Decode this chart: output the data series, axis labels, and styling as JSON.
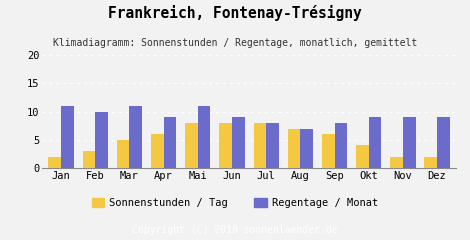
{
  "title": "Frankreich, Fontenay-Trésigny",
  "subtitle": "Klimadiagramm: Sonnenstunden / Regentage, monatlich, gemittelt",
  "months": [
    "Jan",
    "Feb",
    "Mar",
    "Apr",
    "Mai",
    "Jun",
    "Jul",
    "Aug",
    "Sep",
    "Okt",
    "Nov",
    "Dez"
  ],
  "sonnenstunden": [
    2,
    3,
    5,
    6,
    8,
    8,
    8,
    7,
    6,
    4,
    2,
    2
  ],
  "regentage": [
    11,
    10,
    11,
    9,
    11,
    9,
    8,
    7,
    8,
    9,
    9,
    9
  ],
  "color_sonnen": "#f5c842",
  "color_regen": "#6b6bcc",
  "background_chart": "#f2f2f2",
  "background_footer": "#a8a8a8",
  "ylim": [
    0,
    20
  ],
  "yticks": [
    0,
    5,
    10,
    15,
    20
  ],
  "legend_sonnen": "Sonnenstunden / Tag",
  "legend_regen": "Regentage / Monat",
  "copyright": "Copyright (C) 2010 sonnenlaender.de",
  "title_fontsize": 10.5,
  "subtitle_fontsize": 7.0,
  "axis_fontsize": 7.5,
  "legend_fontsize": 7.5,
  "copyright_fontsize": 7.0
}
